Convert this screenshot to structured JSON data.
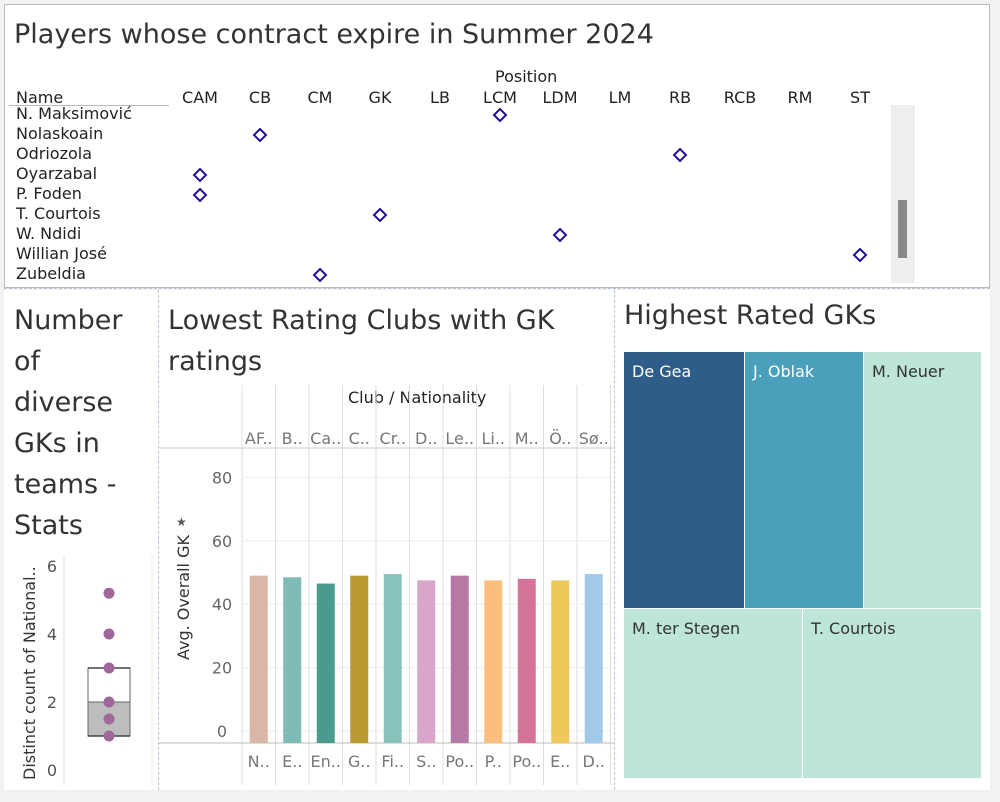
{
  "top": {
    "title": "Players whose contract expire in Summer 2024",
    "col_header": "Position",
    "row_header": "Name",
    "positions": [
      "CAM",
      "CB",
      "CM",
      "GK",
      "LB",
      "LCM",
      "LDM",
      "LM",
      "RB",
      "RCB",
      "RM",
      "ST"
    ],
    "players": [
      "N. Maksimović",
      "Nolaskoain",
      "Odriozola",
      "Oyarzabal",
      "P. Foden",
      "T. Courtois",
      "W. Ndidi",
      "Willian José",
      "Zubeldia"
    ],
    "player_positions": [
      "LCM",
      "CB",
      "RB",
      "CAM",
      "CAM",
      "GK",
      "LDM",
      "ST",
      "CM"
    ],
    "marker_color": "#1f0f9a"
  },
  "boxplot": {
    "title_lines": [
      "Number",
      "of",
      "diverse",
      "GKs in",
      "teams -",
      "Stats"
    ],
    "ylabel": "Distinct count of National..",
    "yticks": [
      0,
      2,
      4,
      6
    ],
    "ylim": [
      0,
      6.5
    ],
    "points": [
      1,
      1.5,
      2,
      3,
      4,
      5.2
    ],
    "q1": 1,
    "median": 2,
    "q3": 3,
    "whisker_low": 1,
    "whisker_high": 3,
    "color": "#a0679b"
  },
  "chart_data": {
    "type": "bar",
    "title": "Lowest Rating Clubs with GK ratings",
    "header": "Club / Nationality",
    "ylabel": "Avg. Overall GK",
    "ylim": [
      0,
      88
    ],
    "yticks": [
      0,
      20,
      40,
      60,
      80
    ],
    "clubs": [
      "AF..",
      "B..",
      "Ca..",
      "C..",
      "Cr..",
      "D..",
      "Le..",
      "Li..",
      "M..",
      "Ö..",
      "Sø.."
    ],
    "categories": [
      "N..",
      "E..",
      "En..",
      "G..",
      "Fi..",
      "S..",
      "Po..",
      "P..",
      "Po..",
      "E..",
      "D.."
    ],
    "values": [
      49,
      48.5,
      46.5,
      49,
      49.5,
      47.5,
      49,
      47.5,
      48,
      47.5,
      49.5
    ],
    "colors": [
      "#d9b6a5",
      "#7fbcb6",
      "#4a9a8e",
      "#b89a30",
      "#87c3bb",
      "#d7a6c8",
      "#b479a4",
      "#fbbf7d",
      "#d5739b",
      "#edc95a",
      "#a3c9e9"
    ]
  },
  "treemap": {
    "title": "Highest Rated GKs",
    "players": [
      {
        "name": "De Gea",
        "color": "#2f5d8a"
      },
      {
        "name": "J. Oblak",
        "color": "#4a9fba"
      },
      {
        "name": "M. Neuer",
        "color": "#bde5da"
      },
      {
        "name": "M. ter Stegen",
        "color": "#bde5da"
      },
      {
        "name": "T. Courtois",
        "color": "#bde5da"
      }
    ]
  }
}
